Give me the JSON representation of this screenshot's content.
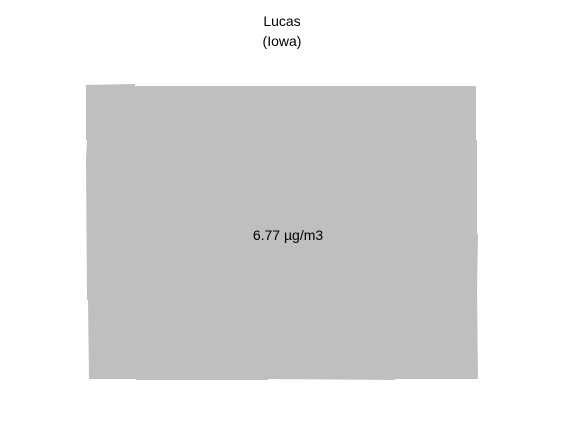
{
  "map": {
    "county_name": "Lucas",
    "state_name": "(Iowa)",
    "value_label": "6.77 µg/m3",
    "fill_color": "#bfbfbf",
    "background_color": "#ffffff"
  }
}
